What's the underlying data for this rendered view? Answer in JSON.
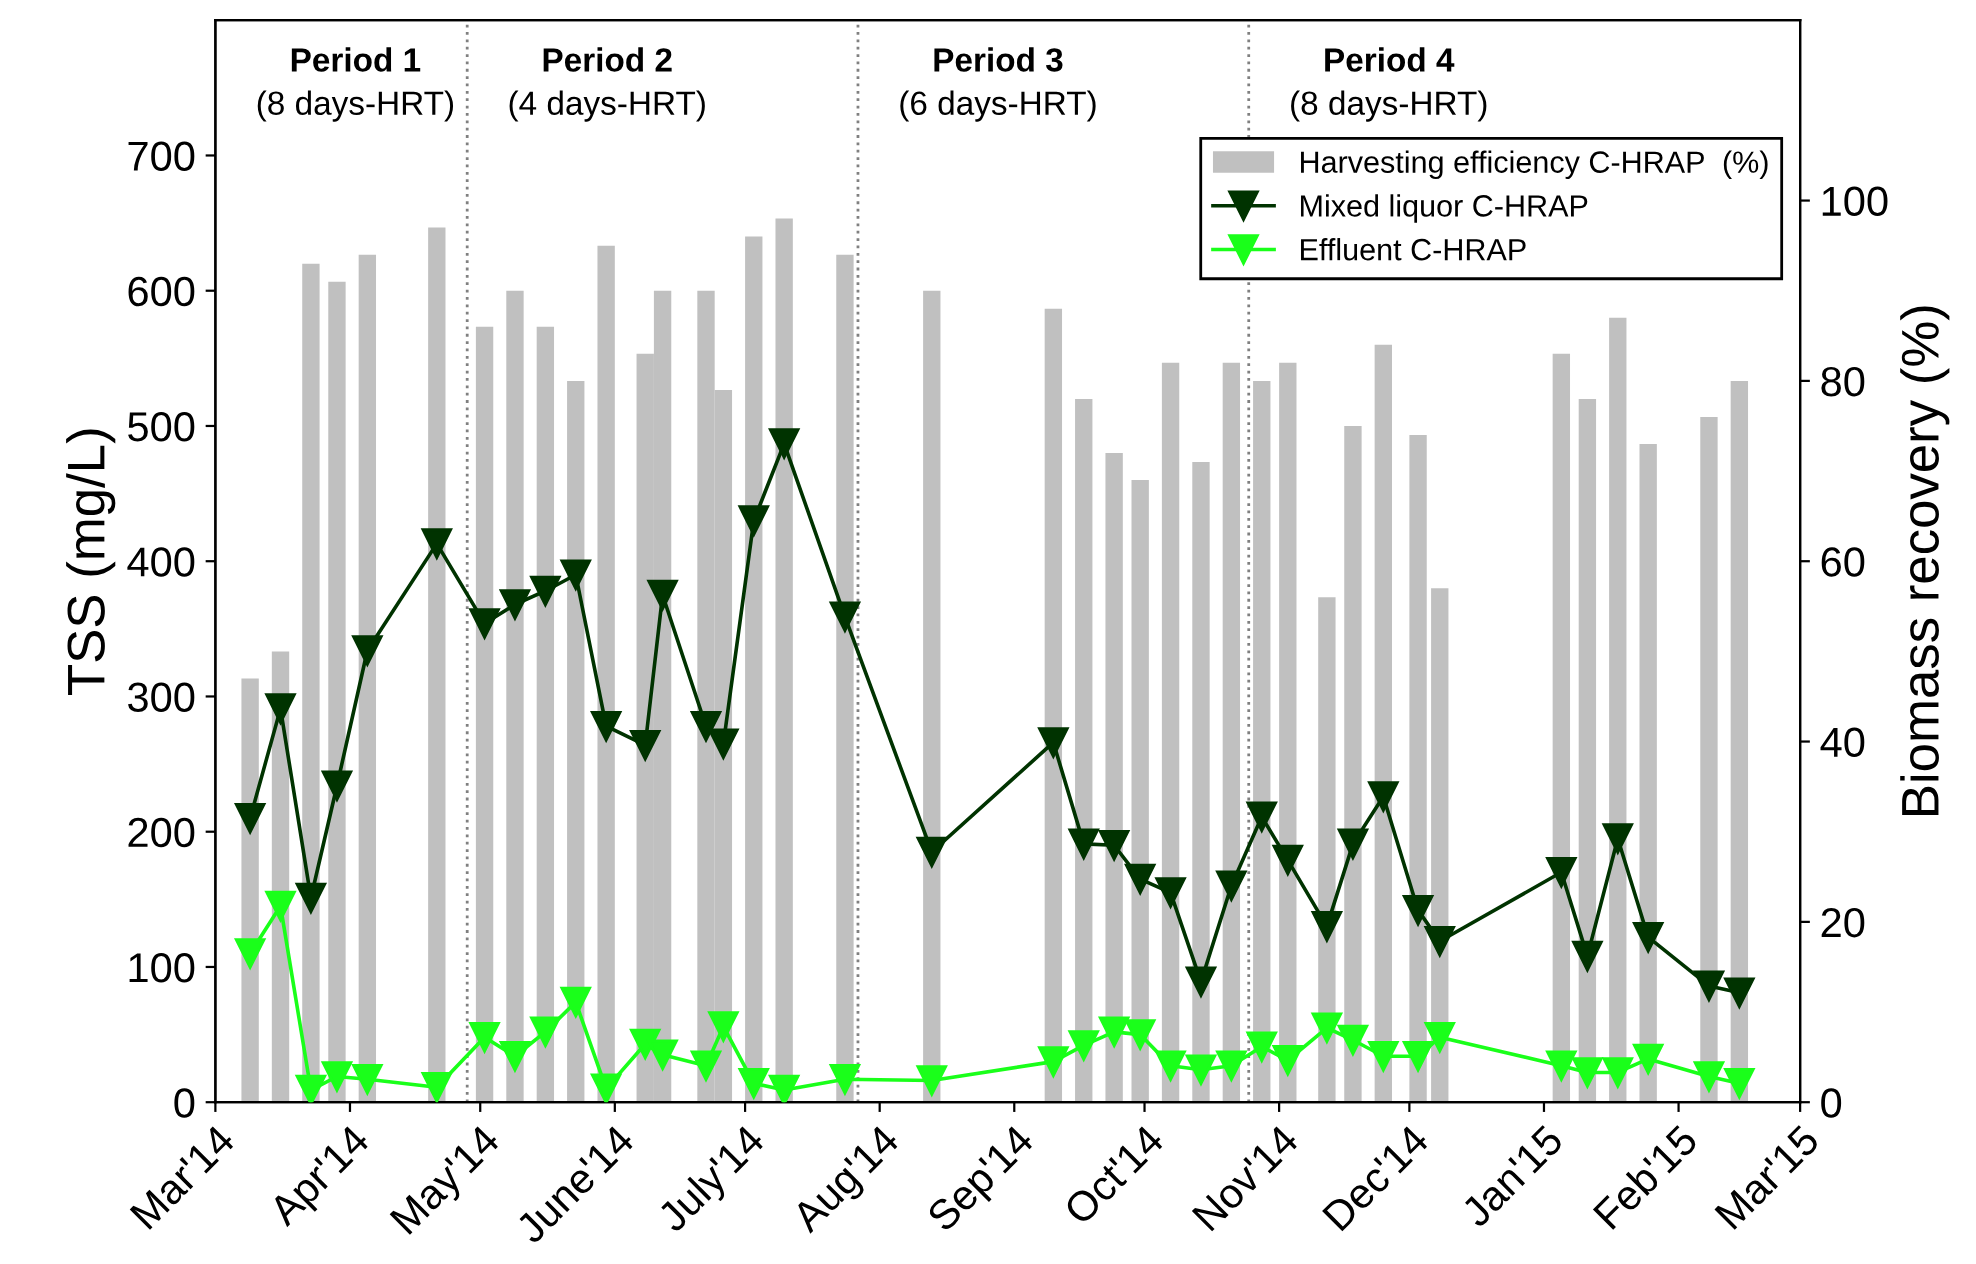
{
  "chart_data": {
    "type": "line",
    "ylabel": "TSS (mg/L)",
    "y2label": "Biomass recovery (%)",
    "x": [
      "2014-03-09",
      "2014-03-16",
      "2014-03-23",
      "2014-03-29",
      "2014-04-05",
      "2014-04-21",
      "2014-05-02",
      "2014-05-09",
      "2014-05-16",
      "2014-05-23",
      "2014-05-30",
      "2014-06-08",
      "2014-06-12",
      "2014-06-22",
      "2014-06-26",
      "2014-07-03",
      "2014-07-10",
      "2014-07-24",
      "2014-08-13",
      "2014-09-10",
      "2014-09-17",
      "2014-09-24",
      "2014-09-30",
      "2014-10-07",
      "2014-10-14",
      "2014-10-21",
      "2014-10-28",
      "2014-11-03",
      "2014-11-12",
      "2014-11-18",
      "2014-11-25",
      "2014-12-03",
      "2014-12-08",
      "2015-01-05",
      "2015-01-11",
      "2015-01-18",
      "2015-01-25",
      "2015-02-08",
      "2015-02-15"
    ],
    "series": [
      {
        "name": "Harvesting efficiency C-HRAP  (%)",
        "type": "bar",
        "axis": "y2",
        "color": "#c0c0c0",
        "values": [
          47,
          50,
          93,
          91,
          94,
          97,
          86,
          90,
          86,
          80,
          95,
          83,
          90,
          90,
          79,
          96,
          98,
          94,
          90,
          88,
          78,
          72,
          69,
          82,
          71,
          82,
          80,
          82,
          56,
          75,
          84,
          74,
          57,
          83,
          78,
          87,
          73,
          76,
          80
        ]
      },
      {
        "name": "Mixed liquor C-HRAP",
        "color": "#003300",
        "values": [
          210,
          291,
          151,
          234,
          334,
          413,
          354,
          368,
          378,
          390,
          278,
          264,
          375,
          278,
          265,
          430,
          487,
          359,
          185,
          266,
          191,
          190,
          165,
          155,
          89,
          160,
          211,
          179,
          130,
          191,
          226,
          142,
          119,
          170,
          108,
          195,
          122,
          86,
          81
        ]
      },
      {
        "name": "Effluent C-HRAP",
        "color": "#1aff1a",
        "values": [
          110,
          145,
          9,
          19,
          17,
          11,
          48,
          34,
          52,
          74,
          10,
          43,
          35,
          27,
          56,
          14,
          9,
          17,
          16,
          30,
          42,
          52,
          50,
          27,
          24,
          27,
          41,
          31,
          55,
          46,
          34,
          34,
          48,
          27,
          22,
          22,
          32,
          19,
          14
        ]
      }
    ],
    "xlim": [
      "2014-03-01",
      "2015-03-01"
    ],
    "xticks": [
      {
        "value": "2014-03-01",
        "label": "Mar'14"
      },
      {
        "value": "2014-04-01",
        "label": "Apr'14"
      },
      {
        "value": "2014-05-01",
        "label": "May'14"
      },
      {
        "value": "2014-06-01",
        "label": "June'14"
      },
      {
        "value": "2014-07-01",
        "label": "July'14"
      },
      {
        "value": "2014-08-01",
        "label": "Aug'14"
      },
      {
        "value": "2014-09-01",
        "label": "Sep'14"
      },
      {
        "value": "2014-10-01",
        "label": "Oct'14"
      },
      {
        "value": "2014-11-01",
        "label": "Nov'14"
      },
      {
        "value": "2014-12-01",
        "label": "Dec'14"
      },
      {
        "value": "2015-01-01",
        "label": "Jan'15"
      },
      {
        "value": "2015-02-01",
        "label": "Feb'15"
      },
      {
        "value": "2015-03-01",
        "label": "Mar'15"
      }
    ],
    "ylim": [
      0,
      800
    ],
    "yticks": [
      0,
      100,
      200,
      300,
      400,
      500,
      600,
      700
    ],
    "y2lim": [
      0,
      120
    ],
    "y2ticks": [
      0,
      20,
      40,
      60,
      80,
      100
    ],
    "ref_lines": [
      {
        "axis": "x",
        "value": "2014-04-28",
        "label": null,
        "color": "#808080",
        "line_style": "dotted"
      },
      {
        "axis": "x",
        "value": "2014-07-27",
        "label": null,
        "color": "#808080",
        "line_style": "dotted"
      },
      {
        "axis": "x",
        "value": "2014-10-25",
        "label": null,
        "color": "#808080",
        "line_style": "dotted"
      }
    ],
    "annotations": [
      "Period 1",
      "(8 days-HRT)",
      "Period 2",
      "(4 days-HRT)",
      "Period 3",
      "(6 days-HRT)",
      "Period 4",
      "(8 days-HRT)"
    ],
    "marker": "triangle",
    "line_style": "solid",
    "legend": "top right",
    "grid": false
  }
}
